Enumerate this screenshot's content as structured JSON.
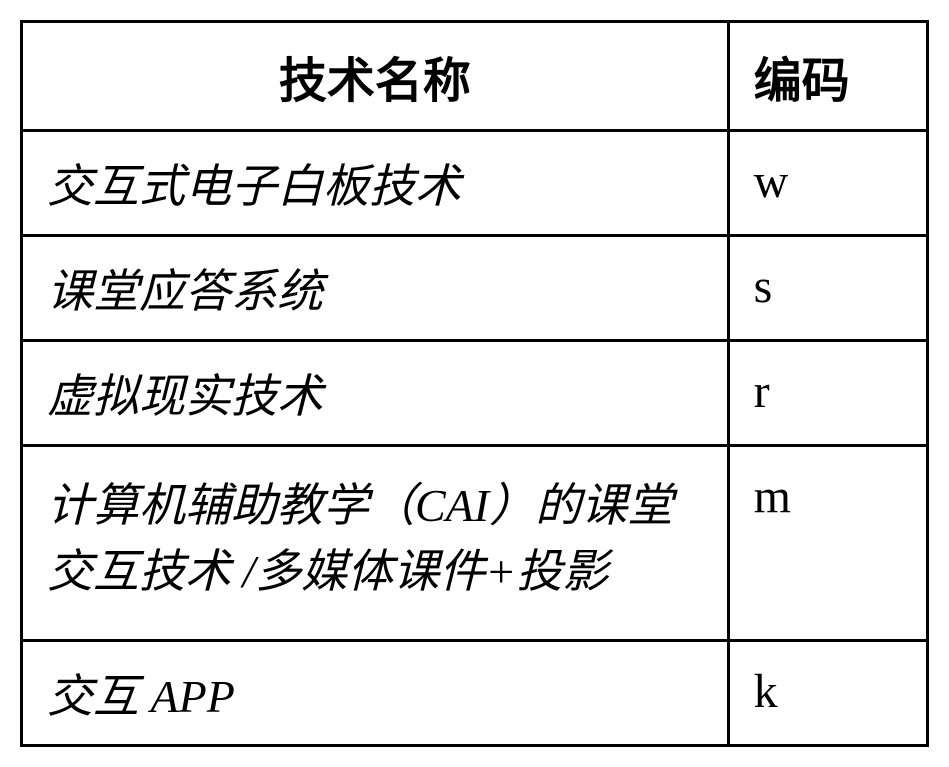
{
  "table": {
    "type": "table",
    "border_color": "#000000",
    "border_width": 3,
    "background_color": "#ffffff",
    "columns": [
      {
        "key": "name",
        "label": "技术名称",
        "width_pct": 78,
        "header_align": "center",
        "header_fontsize": 48,
        "header_font": "SimHei"
      },
      {
        "key": "code",
        "label": "编码",
        "width_pct": 22,
        "header_align": "left",
        "header_fontsize": 48,
        "header_font": "SimHei"
      }
    ],
    "row_styles": {
      "name_fontsize": 46,
      "name_font": "KaiTi",
      "code_fontsize": 48,
      "code_font": "Times New Roman"
    },
    "rows": [
      {
        "name": "交互式电子白板技术",
        "code": "w"
      },
      {
        "name": "课堂应答系统",
        "code": "s"
      },
      {
        "name": "虚拟现实技术",
        "code": "r"
      },
      {
        "name": "计算机辅助教学（CAI）的课堂交互技术 /多媒体课件+投影",
        "code": "m"
      },
      {
        "name": "交互 APP",
        "code": "k"
      }
    ]
  }
}
